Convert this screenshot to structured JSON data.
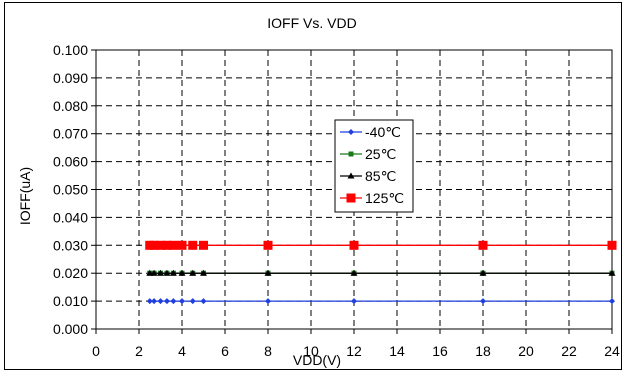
{
  "chart_data": {
    "type": "line",
    "title": "IOFF Vs. VDD",
    "xlabel": "VDD(V)",
    "ylabel": "IOFF(uA)",
    "xlim": [
      0,
      24
    ],
    "ylim": [
      0.0,
      0.1
    ],
    "xticks": [
      0,
      2,
      4,
      6,
      8,
      10,
      12,
      14,
      16,
      18,
      20,
      22,
      24
    ],
    "yticks": [
      0.0,
      0.01,
      0.02,
      0.03,
      0.04,
      0.05,
      0.06,
      0.07,
      0.08,
      0.09,
      0.1
    ],
    "ytick_labels": [
      "0.000",
      "0.010",
      "0.020",
      "0.030",
      "0.040",
      "0.050",
      "0.060",
      "0.070",
      "0.080",
      "0.090",
      "0.100"
    ],
    "grid": "dashed",
    "legend_position": "inside-center",
    "x": [
      2.5,
      2.7,
      3.0,
      3.3,
      3.6,
      4.0,
      4.5,
      5.0,
      8.0,
      12.0,
      18.0,
      24.0
    ],
    "series": [
      {
        "name": "-40℃",
        "color": "#1f3fdf",
        "marker": "diamond",
        "values": [
          0.01,
          0.01,
          0.01,
          0.01,
          0.01,
          0.01,
          0.01,
          0.01,
          0.01,
          0.01,
          0.01,
          0.01
        ]
      },
      {
        "name": "25℃",
        "color": "#1a7a1a",
        "marker": "square-small",
        "values": [
          0.02,
          0.02,
          0.02,
          0.02,
          0.02,
          0.02,
          0.02,
          0.02,
          0.02,
          0.02,
          0.02,
          0.02
        ]
      },
      {
        "name": "85℃",
        "color": "#000000",
        "marker": "triangle",
        "values": [
          0.02,
          0.02,
          0.02,
          0.02,
          0.02,
          0.02,
          0.02,
          0.02,
          0.02,
          0.02,
          0.02,
          0.02
        ]
      },
      {
        "name": "125℃",
        "color": "#ff0000",
        "marker": "square",
        "values": [
          0.03,
          0.03,
          0.03,
          0.03,
          0.03,
          0.03,
          0.03,
          0.03,
          0.03,
          0.03,
          0.03,
          0.03
        ]
      }
    ]
  }
}
